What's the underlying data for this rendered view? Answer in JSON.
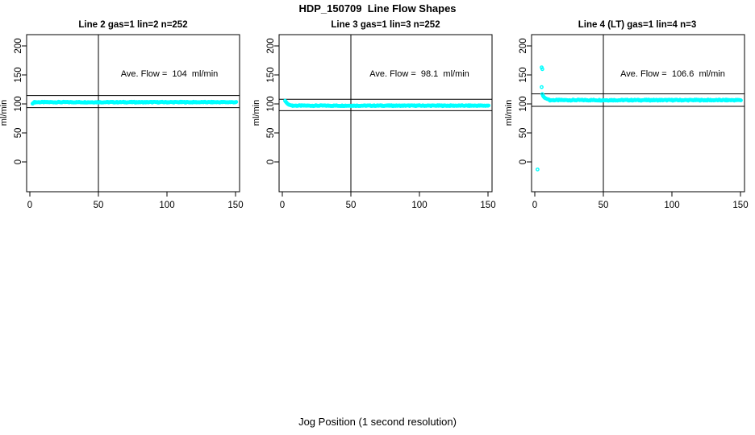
{
  "chart_data": {
    "type": "scatter",
    "title": "HDP_150709  Line Flow Shapes",
    "xlabel": "Jog Position (1 second resolution)",
    "ylabel": "ml/min",
    "xlim": [
      0,
      150
    ],
    "ylim": [
      0,
      200
    ],
    "x_ticks": [
      0,
      50,
      100,
      150
    ],
    "y_ticks": [
      0,
      50,
      100,
      150,
      200
    ],
    "grid": false,
    "legend": "none",
    "point_color": "#00ffff",
    "line_color": "#000000",
    "vline_x": 50,
    "panels": [
      {
        "title": "Line 2 gas=1 lin=2 n=252",
        "annotation": "Ave. Flow =  104  ml/min",
        "ave_flow_ml_min": 104,
        "n": 252,
        "annotation_xy": [
          100,
          150
        ],
        "limit_lines_y": [
          114.4,
          93.6
        ],
        "lead_points": [
          [
            2,
            100.5
          ],
          [
            2.5,
            101.5
          ],
          [
            3,
            102.5
          ]
        ],
        "outlier_points": [],
        "band": {
          "x_start": 3.5,
          "x_end": 150.5,
          "x_step": 0.6,
          "y_mean": 103,
          "y_jitter": 0.8
        }
      },
      {
        "title": "Line 3 gas=1 lin=3 n=252",
        "annotation": "Ave. Flow =  98.1  ml/min",
        "ave_flow_ml_min": 98.1,
        "n": 252,
        "annotation_xy": [
          100,
          150
        ],
        "limit_lines_y": [
          107.9,
          88.3
        ],
        "lead_points": [
          [
            2,
            105.5
          ],
          [
            2.6,
            103.5
          ],
          [
            3.2,
            101.8
          ],
          [
            3.8,
            100.3
          ],
          [
            4.4,
            99.2
          ],
          [
            5,
            98.4
          ],
          [
            5.8,
            97.8
          ],
          [
            6.6,
            97.4
          ]
        ],
        "outlier_points": [],
        "band": {
          "x_start": 7,
          "x_end": 150.5,
          "x_step": 0.6,
          "y_mean": 97,
          "y_jitter": 0.7
        }
      },
      {
        "title": "Line 4 (LT) gas=1 lin=4 n=3",
        "annotation": "Ave. Flow =  106.6  ml/min",
        "ave_flow_ml_min": 106.6,
        "n": 3,
        "annotation_xy": [
          100,
          150
        ],
        "limit_lines_y": [
          117.3,
          95.9
        ],
        "lead_points": [
          [
            5.5,
            117
          ],
          [
            6,
            114
          ],
          [
            6.6,
            112
          ],
          [
            7.2,
            110.5
          ],
          [
            8,
            109.5
          ],
          [
            9,
            108.5
          ],
          [
            10,
            107.8
          ]
        ],
        "outlier_points": [
          [
            5,
            163
          ],
          [
            5.5,
            160
          ],
          [
            5,
            129
          ],
          [
            2,
            -13
          ]
        ],
        "band": {
          "x_start": 10.5,
          "x_end": 150.5,
          "x_step": 0.6,
          "y_mean": 106.5,
          "y_jitter": 0.9
        }
      }
    ]
  }
}
